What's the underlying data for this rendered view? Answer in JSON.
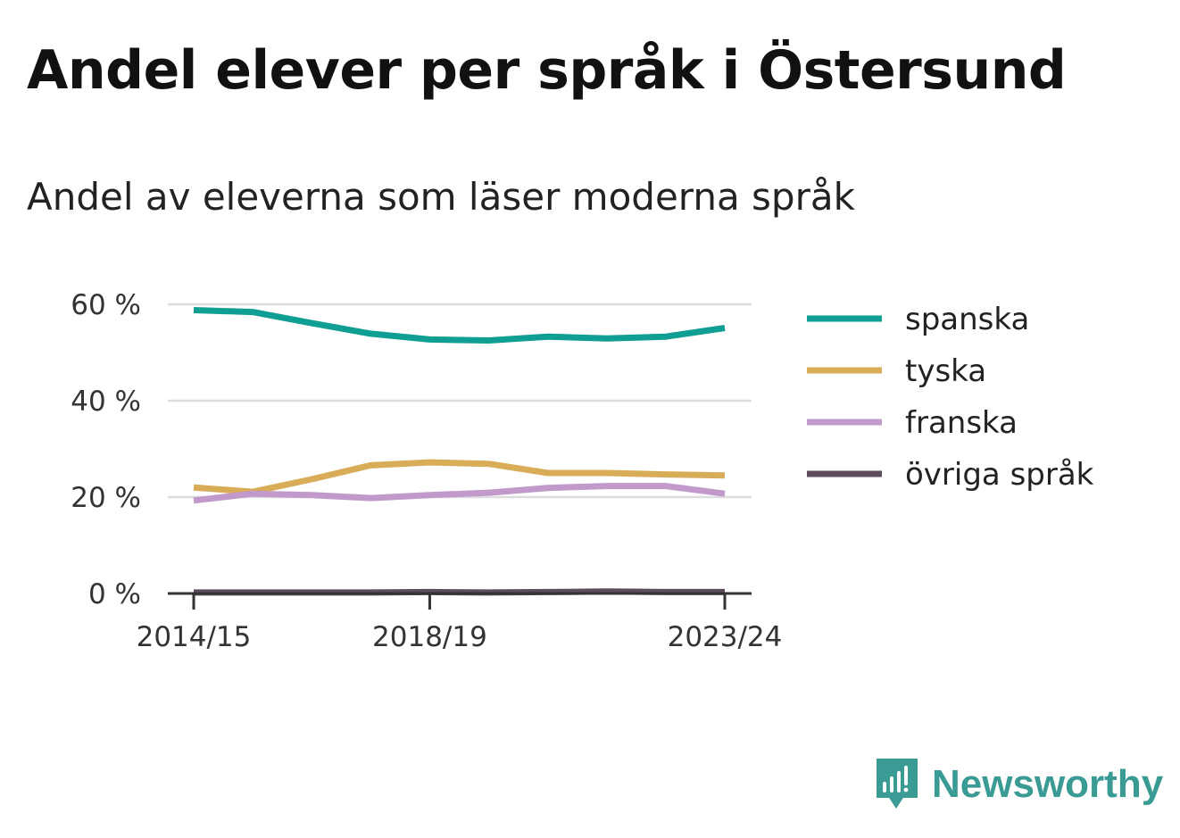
{
  "chart_data": {
    "type": "line",
    "title": "Andel elever per språk i Östersund",
    "subtitle": "Andel av eleverna som läser moderna språk",
    "x": [
      "2014/15",
      "2015/16",
      "2016/17",
      "2017/18",
      "2018/19",
      "2019/20",
      "2020/21",
      "2021/22",
      "2022/23",
      "2023/24"
    ],
    "x_tick_labels": [
      "2014/15",
      "2018/19",
      "2023/24"
    ],
    "x_tick_indices": [
      0,
      4,
      9
    ],
    "ylim": [
      0,
      60
    ],
    "y_ticks": [
      0,
      20,
      40,
      60
    ],
    "y_tick_labels": [
      "0 %",
      "20 %",
      "40 %",
      "60 %"
    ],
    "grid": true,
    "legend_position": "right",
    "series": [
      {
        "name": "spanska",
        "color": "#0e9e93",
        "values": [
          58.8,
          58.4,
          56.1,
          53.9,
          52.7,
          52.5,
          53.3,
          52.9,
          53.3,
          55.1
        ]
      },
      {
        "name": "tyska",
        "color": "#d9ac57",
        "values": [
          22.0,
          21.1,
          23.7,
          26.6,
          27.2,
          26.9,
          25.0,
          25.0,
          24.7,
          24.5
        ]
      },
      {
        "name": "franska",
        "color": "#c19acb",
        "values": [
          19.3,
          20.7,
          20.4,
          19.8,
          20.4,
          20.9,
          21.9,
          22.3,
          22.3,
          20.7
        ]
      },
      {
        "name": "övriga språk",
        "color": "#5d4d5c",
        "values": [
          0.2,
          0.2,
          0.2,
          0.2,
          0.3,
          0.2,
          0.3,
          0.4,
          0.3,
          0.3
        ]
      }
    ]
  },
  "branding": {
    "name": "Newsworthy",
    "logo_icon": "newsworthy-chart-icon",
    "color": "#3a9a94"
  }
}
